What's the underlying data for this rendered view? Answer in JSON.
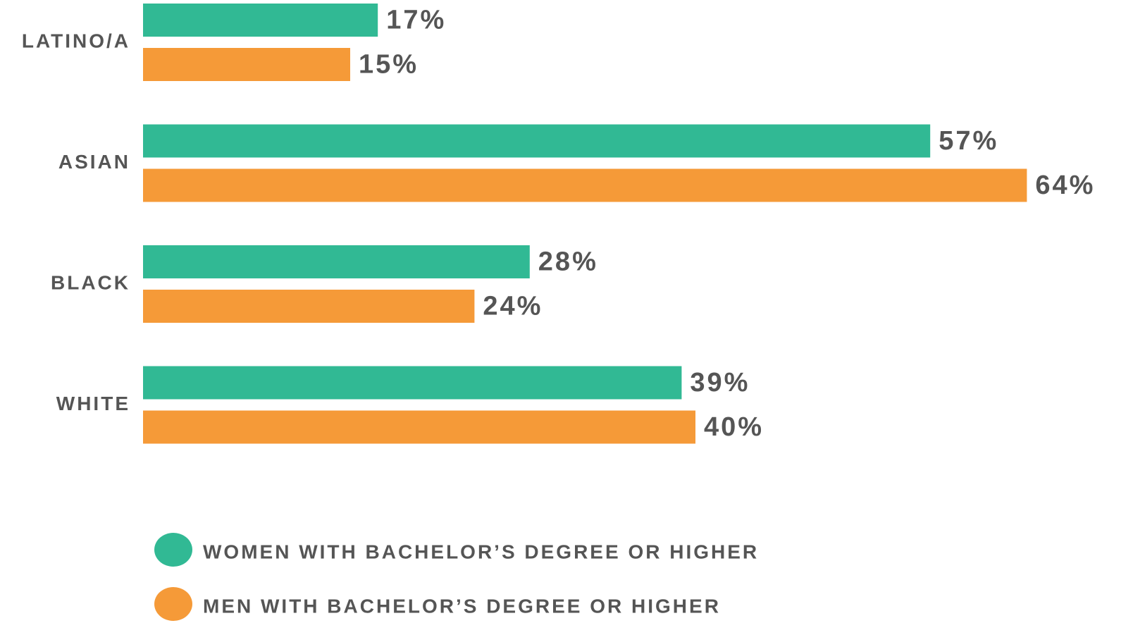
{
  "chart_data": {
    "type": "bar",
    "orientation": "horizontal",
    "categories": [
      "LATINO/A",
      "ASIAN",
      "BLACK",
      "WHITE"
    ],
    "series": [
      {
        "name": "WOMEN WITH BACHELOR’S DEGREE OR HIGHER",
        "color": "#31b994",
        "values": [
          17,
          57,
          28,
          39
        ],
        "value_labels": [
          "17%",
          "57%",
          "28%",
          "39%"
        ]
      },
      {
        "name": "MEN WITH BACHELOR’S DEGREE OR HIGHER",
        "color": "#f59a38",
        "values": [
          15,
          64,
          24,
          40
        ],
        "value_labels": [
          "15%",
          "64%",
          "24%",
          "40%"
        ]
      }
    ],
    "legend": "bottom"
  }
}
